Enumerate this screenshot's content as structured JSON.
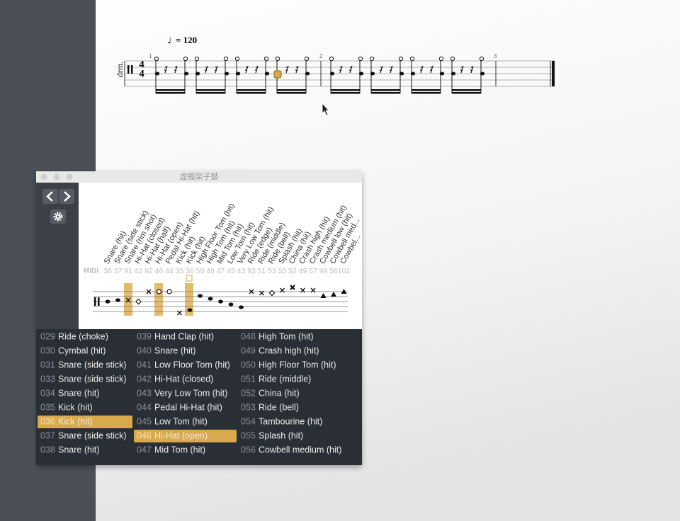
{
  "score": {
    "tempo": "= 120",
    "instrument": "drm.",
    "time_signature": {
      "top": "4",
      "bottom": "4"
    },
    "measure_numbers": [
      "1",
      "2",
      "3"
    ]
  },
  "window": {
    "title": "虛擬架子鼓",
    "midi_label": "MIDI",
    "drums": [
      {
        "label": "Snare (hit)",
        "midi": 38
      },
      {
        "label": "Snare (side stick)",
        "midi": 37
      },
      {
        "label": "Snare (rim shot)",
        "midi": 91
      },
      {
        "label": "Hi-Hat (closed)",
        "midi": 42
      },
      {
        "label": "Hi-Hat (half)",
        "midi": 92
      },
      {
        "label": "Hi-Hat (open)",
        "midi": 46
      },
      {
        "label": "Pedal Hi-Hat (hit)",
        "midi": 44
      },
      {
        "label": "Kick (hit)",
        "midi": 35
      },
      {
        "label": "Kick (hit)",
        "midi": 36
      },
      {
        "label": "High Floor Tom (hit)",
        "midi": 50
      },
      {
        "label": "High Tom (hit)",
        "midi": 48
      },
      {
        "label": "Mid Tom (hit)",
        "midi": 47
      },
      {
        "label": "Low Tom (hit)",
        "midi": 45
      },
      {
        "label": "Very Low Tom (hit)",
        "midi": 43
      },
      {
        "label": "Ride (edge)",
        "midi": 93
      },
      {
        "label": "Ride (middle)",
        "midi": 51
      },
      {
        "label": "Ride (bell)",
        "midi": 53
      },
      {
        "label": "Splash (hit)",
        "midi": 55
      },
      {
        "label": "China (hit)",
        "midi": 52
      },
      {
        "label": "Crash high (hit)",
        "midi": 49
      },
      {
        "label": "Crash medium (hit)",
        "midi": 57
      },
      {
        "label": "Cowbell low (hit)",
        "midi": 99
      },
      {
        "label": "Cowbell med...",
        "midi": 56
      },
      {
        "label": "Cowbel...",
        "midi": 102
      }
    ],
    "list": [
      [
        {
          "code": "029",
          "name": "Ride (choke)"
        },
        {
          "code": "030",
          "name": "Cymbal (hit)"
        },
        {
          "code": "031",
          "name": "Snare (side stick)"
        },
        {
          "code": "033",
          "name": "Snare (side stick)"
        },
        {
          "code": "034",
          "name": "Snare (hit)"
        },
        {
          "code": "035",
          "name": "Kick (hit)"
        },
        {
          "code": "036",
          "name": "Kick (hit)",
          "selected": true
        },
        {
          "code": "037",
          "name": "Snare (side stick)"
        },
        {
          "code": "038",
          "name": "Snare (hit)"
        }
      ],
      [
        {
          "code": "039",
          "name": "Hand Clap (hit)"
        },
        {
          "code": "040",
          "name": "Snare (hit)"
        },
        {
          "code": "041",
          "name": "Low Floor Tom (hit)"
        },
        {
          "code": "042",
          "name": "Hi-Hat (closed)"
        },
        {
          "code": "043",
          "name": "Very Low Tom (hit)"
        },
        {
          "code": "044",
          "name": "Pedal Hi-Hat (hit)"
        },
        {
          "code": "045",
          "name": "Low Tom (hit)"
        },
        {
          "code": "046",
          "name": "Hi-Hat (open)",
          "selected": true
        },
        {
          "code": "047",
          "name": "Mid Tom (hit)"
        }
      ],
      [
        {
          "code": "048",
          "name": "High Tom (hit)"
        },
        {
          "code": "049",
          "name": "Crash high (hit)"
        },
        {
          "code": "050",
          "name": "High Floor Tom (hit)"
        },
        {
          "code": "051",
          "name": "Ride (middle)"
        },
        {
          "code": "052",
          "name": "China (hit)"
        },
        {
          "code": "053",
          "name": "Ride (bell)"
        },
        {
          "code": "054",
          "name": "Tambourine (hit)"
        },
        {
          "code": "055",
          "name": "Splash (hit)"
        },
        {
          "code": "056",
          "name": "Cowbell medium (hit)"
        }
      ]
    ]
  }
}
